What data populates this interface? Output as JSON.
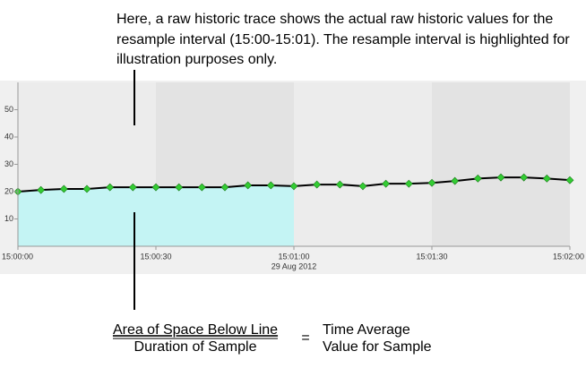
{
  "annotation_top": [
    "Here, a raw historic trace shows the actual raw historic values for the",
    "resample interval (15:00-15:01). The resample interval is highlighted for",
    "illustration purposes only."
  ],
  "formula": {
    "numerator": "Area of Space Below Line",
    "denominator": "Duration of Sample",
    "equals": "=",
    "result": [
      "Time Average",
      "Value for Sample"
    ]
  },
  "chart_data": {
    "type": "line",
    "x": [
      "15:00:00",
      "15:00:05",
      "15:00:10",
      "15:00:15",
      "15:00:20",
      "15:00:25",
      "15:00:30",
      "15:00:35",
      "15:00:40",
      "15:00:45",
      "15:00:50",
      "15:00:55",
      "15:01:00",
      "15:01:05",
      "15:01:10",
      "15:01:15",
      "15:01:20",
      "15:01:25",
      "15:01:30",
      "15:01:35",
      "15:01:40",
      "15:01:45",
      "15:01:50",
      "15:01:55",
      "15:02:00"
    ],
    "series": [
      {
        "color": "#000000",
        "marker_color": "#33cc33",
        "values": [
          20,
          20.6,
          21,
          21,
          21.6,
          21.6,
          21.6,
          21.6,
          21.6,
          21.6,
          22.3,
          22.3,
          22,
          22.6,
          22.6,
          22,
          22.9,
          22.9,
          23.2,
          23.9,
          24.8,
          25.2,
          25.2,
          24.8,
          24.2
        ]
      }
    ],
    "xlim": [
      "15:00:00",
      "15:02:00"
    ],
    "xticks": [
      "15:00:00",
      "15:00:30",
      "15:01:00",
      "15:01:30",
      "15:02:00"
    ],
    "date_label": "29 Aug 2012",
    "ylim": [
      0,
      60
    ],
    "yticks": [
      10,
      20,
      30,
      40,
      50
    ],
    "highlight_interval": [
      "15:00:00",
      "15:01:00"
    ],
    "highlight_color": "#c4f4f4"
  }
}
